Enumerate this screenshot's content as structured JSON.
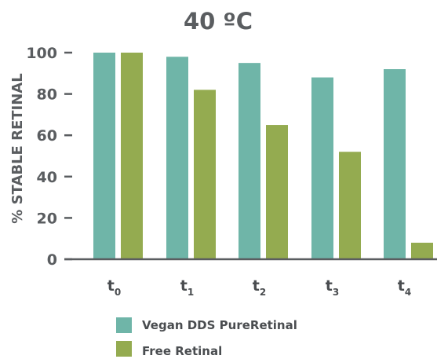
{
  "colors": {
    "vegan": "#6fb5a8",
    "free": "#94ab50",
    "axis": "#5a5d60",
    "text": "#5a5d60"
  },
  "chart_data": {
    "type": "bar",
    "title": "40 ºC",
    "ylabel": "% STABLE RETINAL",
    "xlabel": "",
    "ylim": [
      0,
      100
    ],
    "yticks": [
      "0",
      "20",
      "40",
      "60",
      "80",
      "100"
    ],
    "categories": [
      {
        "base": "t",
        "sub": "0"
      },
      {
        "base": "t",
        "sub": "1"
      },
      {
        "base": "t",
        "sub": "2"
      },
      {
        "base": "t",
        "sub": "3"
      },
      {
        "base": "t",
        "sub": "4"
      }
    ],
    "series": [
      {
        "name": "Vegan DDS PureRetinal",
        "values": [
          100,
          98,
          95,
          88,
          92
        ]
      },
      {
        "name": "Free Retinal",
        "values": [
          100,
          82,
          65,
          52,
          8
        ]
      }
    ],
    "legend_position": "bottom"
  }
}
